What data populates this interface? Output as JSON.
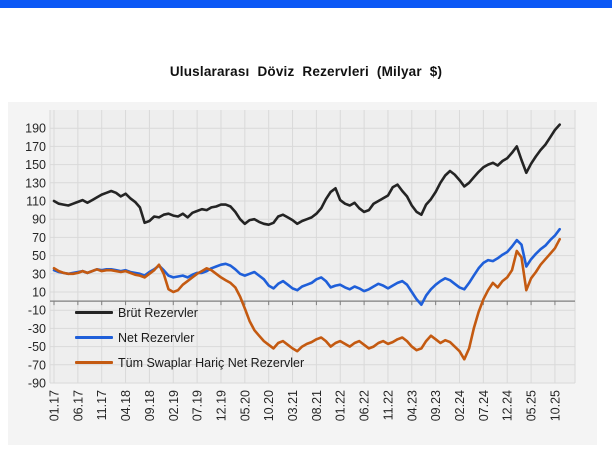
{
  "page": {
    "top_bar_color": "#0b58f5",
    "background": "#ffffff"
  },
  "chart": {
    "title": "Uluslararası Döviz Rezervleri (Milyar $)",
    "panel_bg": "#f4f4f4",
    "plot_bg": "#eeeeee",
    "grid_color": "#d9d9d9",
    "axis_color": "#7f7f7f",
    "text_color": "#262626",
    "y_ticks": [
      190,
      170,
      150,
      130,
      110,
      90,
      70,
      50,
      30,
      10,
      -10,
      -30,
      -50,
      -70,
      -90
    ],
    "x_ticks": [
      "01.17",
      "06.17",
      "11.17",
      "04.18",
      "09.18",
      "02.19",
      "07.19",
      "12.19",
      "05.20",
      "10.20",
      "03.21",
      "08.21",
      "01.22",
      "06.22",
      "11.22",
      "04.23",
      "09.23",
      "02.24",
      "07.24",
      "12.24",
      "05.25",
      "10.25"
    ],
    "legend": [
      {
        "label": "Brüt Rezervler",
        "color": "#242424"
      },
      {
        "label": "Net Rezervler",
        "color": "#1f5fd9"
      },
      {
        "label": "Tüm Swaplar Hariç Net Rezervler",
        "color": "#c45a11"
      }
    ]
  },
  "chart_data": {
    "type": "line",
    "title": "Uluslararası Döviz Rezervleri (Milyar $)",
    "xlabel": "",
    "ylabel": "",
    "ylim": [
      -90,
      210
    ],
    "y_tick_step": 20,
    "grid": true,
    "legend_position": "inside bottom-left",
    "x_months": {
      "start": "2017-01",
      "end": "2025-11",
      "step": "1 month",
      "count": 107
    },
    "x_tick_labels": [
      "01.17",
      "06.17",
      "11.17",
      "04.18",
      "09.18",
      "02.19",
      "07.19",
      "12.19",
      "05.20",
      "10.20",
      "03.21",
      "08.21",
      "01.22",
      "06.22",
      "11.22",
      "04.23",
      "09.23",
      "02.24",
      "07.24",
      "12.24",
      "05.25",
      "10.25"
    ],
    "series": [
      {
        "name": "Brüt Rezervler",
        "color": "#242424",
        "values": [
          110,
          107,
          106,
          105,
          107,
          109,
          111,
          108,
          111,
          114,
          117,
          119,
          121,
          119,
          115,
          118,
          113,
          109,
          103,
          86,
          88,
          93,
          92,
          95,
          96,
          94,
          93,
          96,
          92,
          97,
          99,
          101,
          100,
          103,
          104,
          106,
          106,
          104,
          98,
          90,
          85,
          89,
          90,
          87,
          85,
          84,
          86,
          93,
          95,
          92,
          89,
          85,
          88,
          90,
          92,
          96,
          102,
          112,
          120,
          124,
          111,
          107,
          105,
          108,
          102,
          98,
          100,
          107,
          110,
          113,
          116,
          125,
          128,
          121,
          115,
          105,
          98,
          95,
          106,
          112,
          120,
          130,
          138,
          143,
          139,
          133,
          126,
          130,
          136,
          142,
          147,
          150,
          152,
          149,
          154,
          157,
          163,
          170,
          155,
          141,
          151,
          159,
          166,
          172,
          180,
          188,
          194
        ]
      },
      {
        "name": "Net Rezervler",
        "color": "#1f5fd9",
        "values": [
          34,
          32,
          31,
          30,
          31,
          32,
          33,
          31,
          33,
          35,
          34,
          35,
          35,
          34,
          33,
          34,
          32,
          31,
          30,
          28,
          32,
          35,
          39,
          34,
          28,
          26,
          27,
          28,
          26,
          29,
          31,
          31,
          33,
          36,
          38,
          40,
          41,
          39,
          35,
          30,
          28,
          30,
          32,
          28,
          24,
          17,
          14,
          19,
          22,
          18,
          14,
          12,
          16,
          18,
          20,
          24,
          26,
          22,
          15,
          17,
          18,
          15,
          13,
          16,
          14,
          11,
          13,
          16,
          19,
          17,
          14,
          17,
          20,
          22,
          18,
          10,
          2,
          -4,
          6,
          13,
          18,
          22,
          25,
          23,
          19,
          15,
          13,
          20,
          28,
          36,
          42,
          45,
          44,
          47,
          51,
          54,
          60,
          67,
          62,
          38,
          46,
          52,
          57,
          61,
          67,
          72,
          79
        ]
      },
      {
        "name": "Tüm Swaplar Hariç Net Rezervler",
        "color": "#c45a11",
        "values": [
          36,
          33,
          31,
          30,
          30,
          31,
          33,
          31,
          33,
          35,
          33,
          34,
          34,
          33,
          32,
          33,
          31,
          29,
          28,
          26,
          30,
          34,
          40,
          30,
          13,
          10,
          12,
          18,
          22,
          26,
          30,
          33,
          36,
          34,
          30,
          26,
          23,
          20,
          15,
          5,
          -8,
          -22,
          -32,
          -38,
          -44,
          -48,
          -52,
          -46,
          -44,
          -48,
          -52,
          -55,
          -50,
          -47,
          -45,
          -42,
          -40,
          -44,
          -50,
          -46,
          -44,
          -47,
          -50,
          -46,
          -44,
          -48,
          -52,
          -50,
          -46,
          -44,
          -47,
          -45,
          -42,
          -40,
          -44,
          -50,
          -54,
          -52,
          -44,
          -38,
          -42,
          -46,
          -43,
          -45,
          -50,
          -55,
          -64,
          -52,
          -30,
          -12,
          2,
          12,
          20,
          15,
          22,
          26,
          34,
          55,
          48,
          12,
          25,
          32,
          40,
          46,
          52,
          58,
          68
        ]
      }
    ]
  }
}
